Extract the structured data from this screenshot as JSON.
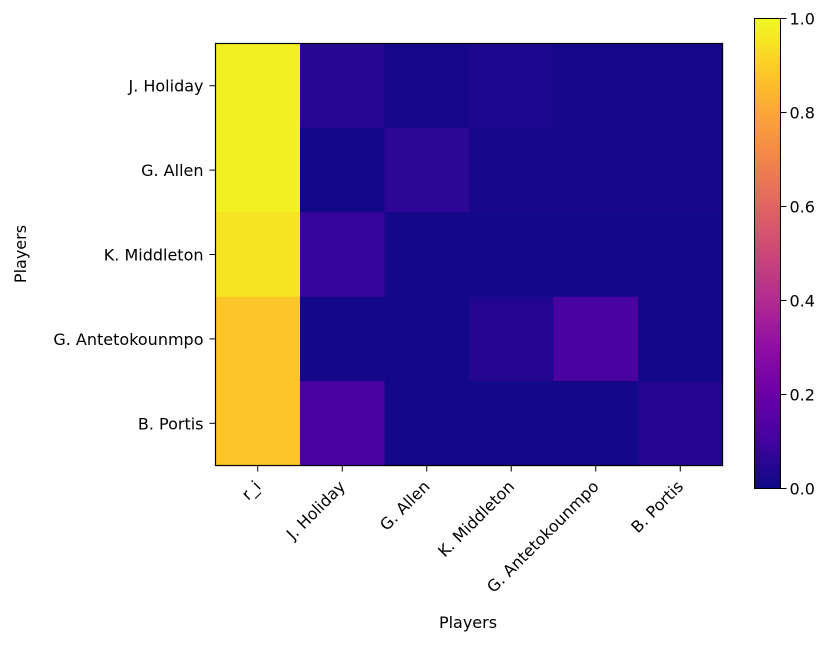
{
  "chart_data": {
    "type": "heatmap",
    "title": "",
    "xlabel": "Players",
    "ylabel": "Players",
    "x_categories": [
      "r_i",
      "J. Holiday",
      "G. Allen",
      "K. Middleton",
      "G. Antetokounmpo",
      "B. Portis"
    ],
    "y_categories": [
      "J. Holiday",
      "G. Allen",
      "K. Middleton",
      "G. Antetokounmpo",
      "B. Portis"
    ],
    "values": [
      [
        0.98,
        0.05,
        0.02,
        0.03,
        0.02,
        0.02
      ],
      [
        0.98,
        0.01,
        0.06,
        0.02,
        0.02,
        0.02
      ],
      [
        0.95,
        0.08,
        0.01,
        0.01,
        0.01,
        0.01
      ],
      [
        0.88,
        0.01,
        0.01,
        0.04,
        0.12,
        0.01
      ],
      [
        0.88,
        0.12,
        0.01,
        0.01,
        0.01,
        0.04
      ]
    ],
    "colormap": "plasma",
    "vmin": 0.0,
    "vmax": 1.0,
    "colorbar_ticks": [
      "0.0",
      "0.2",
      "0.4",
      "0.6",
      "0.8",
      "1.0"
    ],
    "grid": false
  }
}
